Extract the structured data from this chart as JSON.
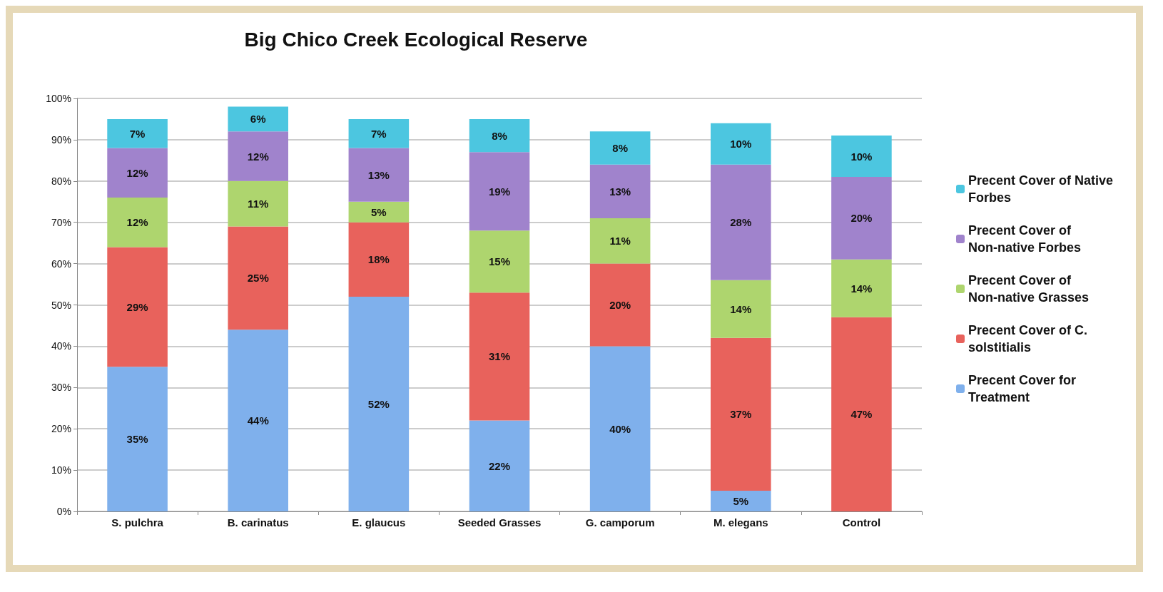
{
  "chart_data": {
    "type": "bar",
    "title": "Big Chico Creek Ecological Reserve",
    "categories": [
      "S. pulchra",
      "B. carinatus",
      "E. glaucus",
      "Seeded Grasses",
      "G. camporum",
      "M. elegans",
      "Control"
    ],
    "stacked": true,
    "series": [
      {
        "name": "Precent Cover for Treatment",
        "color": "#7fb0ec",
        "values": [
          35,
          44,
          52,
          22,
          40,
          5,
          null
        ],
        "value_labels": [
          "35%",
          "44%",
          "52%",
          "22%",
          "40%",
          "5%",
          null
        ]
      },
      {
        "name": "Precent Cover of C. solstitialis",
        "color": "#e8625c",
        "values": [
          29,
          25,
          18,
          31,
          20,
          37,
          47
        ],
        "value_labels": [
          "29%",
          "25%",
          "18%",
          "31%",
          "20%",
          "37%",
          "47%"
        ]
      },
      {
        "name": "Precent Cover of Non-native Grasses",
        "color": "#aed56e",
        "values": [
          12,
          11,
          5,
          15,
          11,
          14,
          14
        ],
        "value_labels": [
          "12%",
          "11%",
          "5%",
          "15%",
          "11%",
          "14%",
          "14%"
        ]
      },
      {
        "name": "Precent Cover of Non-native Forbes",
        "color": "#a083cc",
        "values": [
          12,
          12,
          13,
          19,
          13,
          28,
          20
        ],
        "value_labels": [
          "12%",
          "12%",
          "13%",
          "19%",
          "13%",
          "28%",
          "20%"
        ]
      },
      {
        "name": "Precent Cover of Native Forbes",
        "color": "#4cc6e0",
        "values": [
          7,
          6,
          7,
          8,
          8,
          10,
          10
        ],
        "value_labels": [
          "7%",
          "6%",
          "7%",
          "8%",
          "8%",
          "10%",
          "10%"
        ]
      }
    ],
    "ylim": [
      0,
      100
    ],
    "yticks": [
      {
        "value": 0,
        "label": "0%"
      },
      {
        "value": 10,
        "label": "10%"
      },
      {
        "value": 20,
        "label": "20%"
      },
      {
        "value": 30,
        "label": "30%"
      },
      {
        "value": 40,
        "label": "40%"
      },
      {
        "value": 50,
        "label": "50%"
      },
      {
        "value": 60,
        "label": "60%"
      },
      {
        "value": 70,
        "label": "70%"
      },
      {
        "value": 80,
        "label": "80%"
      },
      {
        "value": 90,
        "label": "90%"
      },
      {
        "value": 100,
        "label": "100%"
      }
    ],
    "grid": "y",
    "legend": "right"
  }
}
